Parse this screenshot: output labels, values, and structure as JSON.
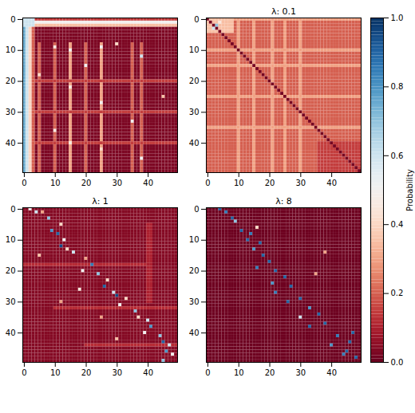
{
  "chart_data": [
    {
      "type": "heatmap",
      "shape": [
        50,
        50
      ],
      "color": "RdBu",
      "grid": false,
      "xlim": [
        -0.5,
        49.5
      ],
      "ylim": [
        49.5,
        -0.5
      ],
      "xticks": [
        0,
        10,
        20,
        30,
        40
      ],
      "yticks": [
        0,
        10,
        20,
        30,
        40
      ],
      "base_value": 0.03,
      "rects": [
        [
          0,
          2,
          0,
          3,
          0.6
        ],
        [
          0,
          0,
          4,
          49,
          0.15
        ],
        [
          1,
          1,
          4,
          49,
          0.5
        ],
        [
          2,
          2,
          4,
          49,
          0.35
        ],
        [
          3,
          49,
          0,
          0,
          0.75
        ],
        [
          3,
          49,
          1,
          1,
          0.6
        ],
        [
          3,
          49,
          2,
          2,
          0.4
        ],
        [
          3,
          49,
          3,
          3,
          0.2
        ],
        [
          8,
          49,
          5,
          5,
          0.2
        ],
        [
          8,
          49,
          10,
          10,
          0.2
        ],
        [
          8,
          49,
          15,
          15,
          0.3
        ],
        [
          8,
          49,
          20,
          20,
          0.2
        ],
        [
          8,
          49,
          25,
          25,
          0.3
        ],
        [
          8,
          49,
          35,
          35,
          0.2
        ],
        [
          8,
          49,
          38,
          38,
          0.2
        ],
        [
          20,
          20,
          4,
          49,
          0.15
        ],
        [
          30,
          30,
          4,
          49,
          0.15
        ],
        [
          40,
          40,
          4,
          49,
          0.15
        ]
      ],
      "cells": [
        [
          10,
          15,
          0.5
        ],
        [
          9,
          25,
          0.5
        ],
        [
          12,
          38,
          0.6
        ],
        [
          9,
          10,
          0.45
        ],
        [
          15,
          20,
          0.5
        ],
        [
          22,
          15,
          0.45
        ],
        [
          27,
          25,
          0.5
        ],
        [
          33,
          35,
          0.5
        ],
        [
          40,
          15,
          0.45
        ],
        [
          45,
          38,
          0.5
        ],
        [
          18,
          5,
          0.4
        ],
        [
          36,
          10,
          0.45
        ],
        [
          8,
          30,
          0.4
        ],
        [
          25,
          45,
          0.35
        ],
        [
          42,
          25,
          0.4
        ]
      ]
    },
    {
      "type": "heatmap",
      "title": "λ: 0.1",
      "shape": [
        50,
        50
      ],
      "color": "RdBu",
      "grid": false,
      "xlim": [
        -0.5,
        49.5
      ],
      "ylim": [
        49.5,
        -0.5
      ],
      "xticks": [
        0,
        10,
        20,
        30,
        40
      ],
      "yticks": [
        0,
        10,
        20,
        30,
        40
      ],
      "base_value": 0.2,
      "rects": [
        [
          0,
          0,
          0,
          49,
          0.3
        ],
        [
          0,
          4,
          0,
          8,
          0.35
        ],
        [
          0,
          49,
          10,
          10,
          0.3
        ],
        [
          0,
          49,
          15,
          15,
          0.3
        ],
        [
          0,
          49,
          21,
          21,
          0.3
        ],
        [
          0,
          49,
          25,
          25,
          0.3
        ],
        [
          0,
          49,
          30,
          30,
          0.3
        ],
        [
          10,
          10,
          0,
          49,
          0.3
        ],
        [
          15,
          15,
          0,
          49,
          0.3
        ],
        [
          25,
          25,
          0,
          49,
          0.3
        ],
        [
          35,
          35,
          0,
          49,
          0.3
        ],
        [
          40,
          49,
          36,
          49,
          0.15
        ]
      ],
      "cells": [
        [
          2,
          3,
          0.7
        ],
        [
          3,
          2,
          0.6
        ],
        [
          1,
          4,
          0.45
        ],
        [
          28,
          28,
          0.02
        ],
        [
          0,
          0,
          0.02
        ],
        [
          1,
          1,
          0.02
        ],
        [
          2,
          2,
          0.02
        ],
        [
          3,
          3,
          0.02
        ],
        [
          4,
          4,
          0.02
        ],
        [
          5,
          5,
          0.02
        ],
        [
          6,
          6,
          0.02
        ],
        [
          7,
          7,
          0.02
        ],
        [
          8,
          8,
          0.02
        ],
        [
          9,
          9,
          0.02
        ],
        [
          10,
          10,
          0.02
        ],
        [
          11,
          11,
          0.02
        ],
        [
          12,
          12,
          0.02
        ],
        [
          13,
          13,
          0.02
        ],
        [
          14,
          14,
          0.02
        ],
        [
          15,
          15,
          0.02
        ],
        [
          16,
          16,
          0.02
        ],
        [
          17,
          17,
          0.02
        ],
        [
          18,
          18,
          0.02
        ],
        [
          19,
          19,
          0.02
        ],
        [
          20,
          20,
          0.02
        ],
        [
          21,
          21,
          0.02
        ],
        [
          22,
          22,
          0.02
        ],
        [
          23,
          23,
          0.02
        ],
        [
          24,
          24,
          0.02
        ],
        [
          25,
          25,
          0.02
        ],
        [
          26,
          26,
          0.02
        ],
        [
          27,
          27,
          0.02
        ],
        [
          29,
          29,
          0.02
        ],
        [
          30,
          30,
          0.02
        ],
        [
          31,
          31,
          0.02
        ],
        [
          32,
          32,
          0.02
        ],
        [
          33,
          33,
          0.02
        ],
        [
          34,
          34,
          0.02
        ],
        [
          35,
          35,
          0.02
        ],
        [
          36,
          36,
          0.02
        ],
        [
          37,
          37,
          0.02
        ],
        [
          38,
          38,
          0.02
        ],
        [
          39,
          39,
          0.02
        ],
        [
          40,
          40,
          0.02
        ],
        [
          41,
          41,
          0.02
        ],
        [
          42,
          42,
          0.02
        ],
        [
          43,
          43,
          0.02
        ],
        [
          44,
          44,
          0.02
        ],
        [
          45,
          45,
          0.02
        ],
        [
          46,
          46,
          0.02
        ],
        [
          47,
          47,
          0.02
        ],
        [
          48,
          48,
          0.02
        ],
        [
          49,
          49,
          0.02
        ]
      ]
    },
    {
      "type": "heatmap",
      "title": "λ: 1",
      "shape": [
        50,
        50
      ],
      "color": "RdBu",
      "grid": false,
      "xlim": [
        -0.5,
        49.5
      ],
      "ylim": [
        49.5,
        -0.5
      ],
      "xticks": [
        0,
        10,
        20,
        30,
        40
      ],
      "yticks": [
        0,
        10,
        20,
        30,
        40
      ],
      "base_value": 0.04,
      "rects": [
        [
          18,
          18,
          0,
          40,
          0.12
        ],
        [
          32,
          32,
          10,
          49,
          0.12
        ],
        [
          44,
          44,
          20,
          49,
          0.12
        ],
        [
          5,
          30,
          40,
          41,
          0.1
        ]
      ],
      "cells": [
        [
          0,
          2,
          0.5
        ],
        [
          1,
          4,
          0.6
        ],
        [
          1,
          6,
          0.3
        ],
        [
          3,
          8,
          0.7
        ],
        [
          5,
          12,
          0.4
        ],
        [
          7,
          9,
          0.8
        ],
        [
          8,
          11,
          0.9
        ],
        [
          10,
          13,
          0.5
        ],
        [
          12,
          12,
          0.95
        ],
        [
          13,
          14,
          0.4
        ],
        [
          14,
          16,
          0.6
        ],
        [
          16,
          20,
          0.3
        ],
        [
          18,
          22,
          0.85
        ],
        [
          20,
          19,
          0.5
        ],
        [
          21,
          24,
          0.7
        ],
        [
          23,
          27,
          0.4
        ],
        [
          25,
          26,
          0.9
        ],
        [
          27,
          29,
          0.6
        ],
        [
          28,
          30,
          0.95
        ],
        [
          29,
          33,
          0.4
        ],
        [
          31,
          31,
          0.5
        ],
        [
          33,
          36,
          0.7
        ],
        [
          35,
          37,
          0.4
        ],
        [
          36,
          40,
          0.6
        ],
        [
          38,
          41,
          0.8
        ],
        [
          40,
          39,
          0.5
        ],
        [
          41,
          44,
          0.7
        ],
        [
          43,
          45,
          0.9
        ],
        [
          44,
          47,
          0.6
        ],
        [
          46,
          46,
          0.8
        ],
        [
          47,
          48,
          0.5
        ],
        [
          49,
          45,
          0.7
        ],
        [
          26,
          18,
          0.45
        ],
        [
          30,
          12,
          0.3
        ],
        [
          35,
          25,
          0.3
        ],
        [
          42,
          30,
          0.35
        ],
        [
          15,
          5,
          0.35
        ]
      ]
    },
    {
      "type": "heatmap",
      "title": "λ: 8",
      "shape": [
        50,
        50
      ],
      "color": "RdBu",
      "grid": false,
      "xlim": [
        -0.5,
        49.5
      ],
      "ylim": [
        49.5,
        -0.5
      ],
      "xticks": [
        0,
        10,
        20,
        30,
        40
      ],
      "yticks": [
        0,
        10,
        20,
        30,
        40
      ],
      "base_value": 0.01,
      "rects": [],
      "cells": [
        [
          0,
          4,
          0.9
        ],
        [
          1,
          6,
          0.85
        ],
        [
          3,
          8,
          0.9
        ],
        [
          4,
          9,
          0.7
        ],
        [
          7,
          11,
          0.9
        ],
        [
          8,
          14,
          0.85
        ],
        [
          10,
          13,
          0.9
        ],
        [
          11,
          17,
          0.9
        ],
        [
          13,
          15,
          0.8
        ],
        [
          15,
          18,
          0.9
        ],
        [
          17,
          20,
          0.9
        ],
        [
          19,
          16,
          0.85
        ],
        [
          20,
          22,
          0.9
        ],
        [
          22,
          25,
          0.9
        ],
        [
          24,
          21,
          0.8
        ],
        [
          25,
          27,
          0.9
        ],
        [
          27,
          22,
          0.85
        ],
        [
          29,
          30,
          0.9
        ],
        [
          30,
          26,
          0.9
        ],
        [
          32,
          33,
          0.8
        ],
        [
          34,
          36,
          0.9
        ],
        [
          35,
          30,
          0.6
        ],
        [
          37,
          38,
          0.9
        ],
        [
          38,
          33,
          0.9
        ],
        [
          40,
          47,
          0.9
        ],
        [
          41,
          42,
          0.85
        ],
        [
          43,
          46,
          0.9
        ],
        [
          44,
          40,
          0.8
        ],
        [
          46,
          45,
          0.9
        ],
        [
          47,
          44,
          0.85
        ],
        [
          48,
          48,
          0.9
        ],
        [
          6,
          16,
          0.4
        ],
        [
          21,
          35,
          0.3
        ],
        [
          14,
          38,
          0.3
        ]
      ]
    }
  ],
  "colorbar": {
    "label": "Probability",
    "range": [
      0,
      1
    ],
    "ticks": [
      {
        "value": 0,
        "label": "0.0"
      },
      {
        "value": 0.2,
        "label": "0.2"
      },
      {
        "value": 0.4,
        "label": "0.4"
      },
      {
        "value": 0.6,
        "label": "0.6"
      },
      {
        "value": 0.8,
        "label": "0.8"
      },
      {
        "value": 1,
        "label": "1.0"
      }
    ]
  }
}
